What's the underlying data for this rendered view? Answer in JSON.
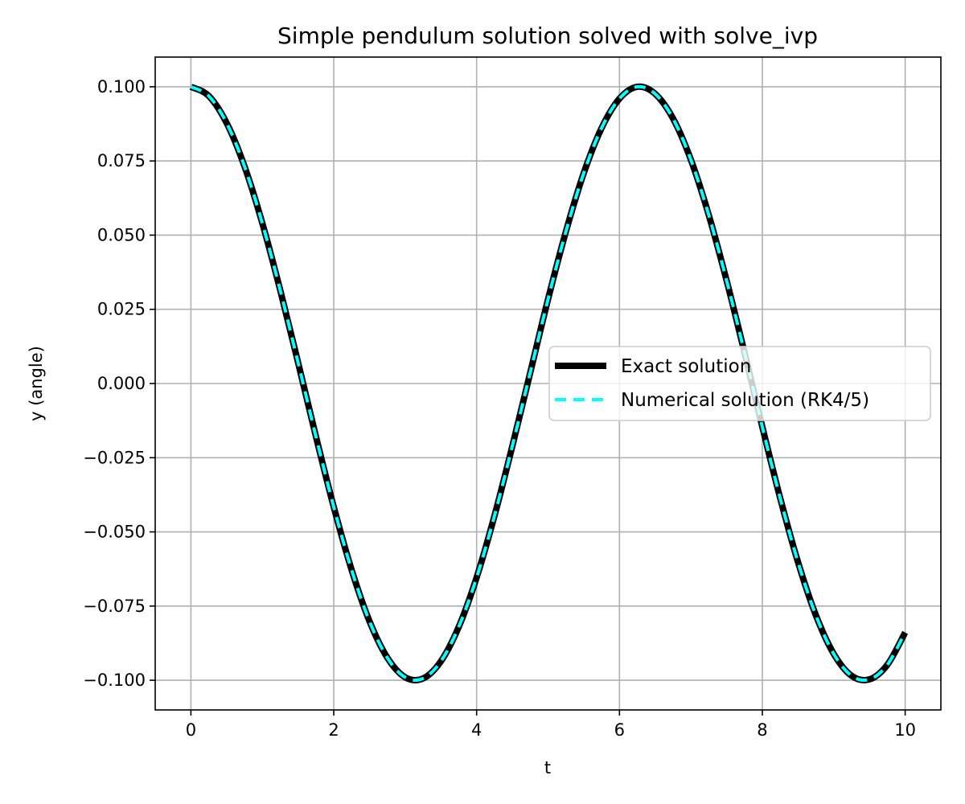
{
  "chart_data": {
    "type": "line",
    "title": "Simple pendulum solution solved with solve_ivp",
    "xlabel": "t",
    "ylabel": "y (angle)",
    "xlim": [
      -0.5,
      10.5
    ],
    "ylim": [
      -0.11,
      0.11
    ],
    "xticks": [
      0,
      2,
      4,
      6,
      8,
      10
    ],
    "xtick_labels": [
      "0",
      "2",
      "4",
      "6",
      "8",
      "10"
    ],
    "yticks": [
      -0.1,
      -0.075,
      -0.05,
      -0.025,
      0.0,
      0.025,
      0.05,
      0.075,
      0.1
    ],
    "ytick_labels": [
      "−0.100",
      "−0.075",
      "−0.050",
      "−0.025",
      "0.000",
      "0.025",
      "0.050",
      "0.075",
      "0.100"
    ],
    "grid": true,
    "legend_position": "center-right",
    "x": [
      0,
      0.25,
      0.5,
      0.75,
      1,
      1.25,
      1.5,
      1.75,
      2,
      2.25,
      2.5,
      2.75,
      3,
      3.25,
      3.5,
      3.75,
      4,
      4.25,
      4.5,
      4.75,
      5,
      5.25,
      5.5,
      5.75,
      6,
      6.25,
      6.5,
      6.75,
      7,
      7.25,
      7.5,
      7.75,
      8,
      8.25,
      8.5,
      8.75,
      9,
      9.25,
      9.5,
      9.75,
      10
    ],
    "series": [
      {
        "name": "Exact solution",
        "color": "#000000",
        "style": "solid",
        "values": [
          0.1,
          0.0969,
          0.0878,
          0.0732,
          0.054,
          0.0315,
          0.0071,
          -0.0178,
          -0.0416,
          -0.0628,
          -0.0801,
          -0.0924,
          -0.099,
          -0.0994,
          -0.0936,
          -0.082,
          -0.0654,
          -0.0446,
          -0.0211,
          0.0036,
          0.0284,
          0.0512,
          0.0709,
          0.0861,
          0.096,
          0.1,
          0.0976,
          0.0893,
          0.0754,
          0.0568,
          0.0347,
          0.0105,
          -0.0146,
          -0.0386,
          -0.0602,
          -0.0781,
          -0.0911,
          -0.0985,
          -0.0997,
          -0.0948,
          -0.0839
        ]
      },
      {
        "name": "Numerical solution (RK4/5)",
        "color": "#00ffff",
        "style": "dashed",
        "values": [
          0.1,
          0.0969,
          0.0878,
          0.0732,
          0.054,
          0.0315,
          0.0071,
          -0.0178,
          -0.0416,
          -0.0628,
          -0.0801,
          -0.0924,
          -0.099,
          -0.0994,
          -0.0936,
          -0.082,
          -0.0654,
          -0.0446,
          -0.0211,
          0.0036,
          0.0284,
          0.0512,
          0.0709,
          0.0861,
          0.096,
          0.1,
          0.0976,
          0.0893,
          0.0754,
          0.0568,
          0.0347,
          0.0105,
          -0.0146,
          -0.0386,
          -0.0602,
          -0.0781,
          -0.0911,
          -0.0985,
          -0.0997,
          -0.0948,
          -0.0839
        ]
      }
    ]
  }
}
